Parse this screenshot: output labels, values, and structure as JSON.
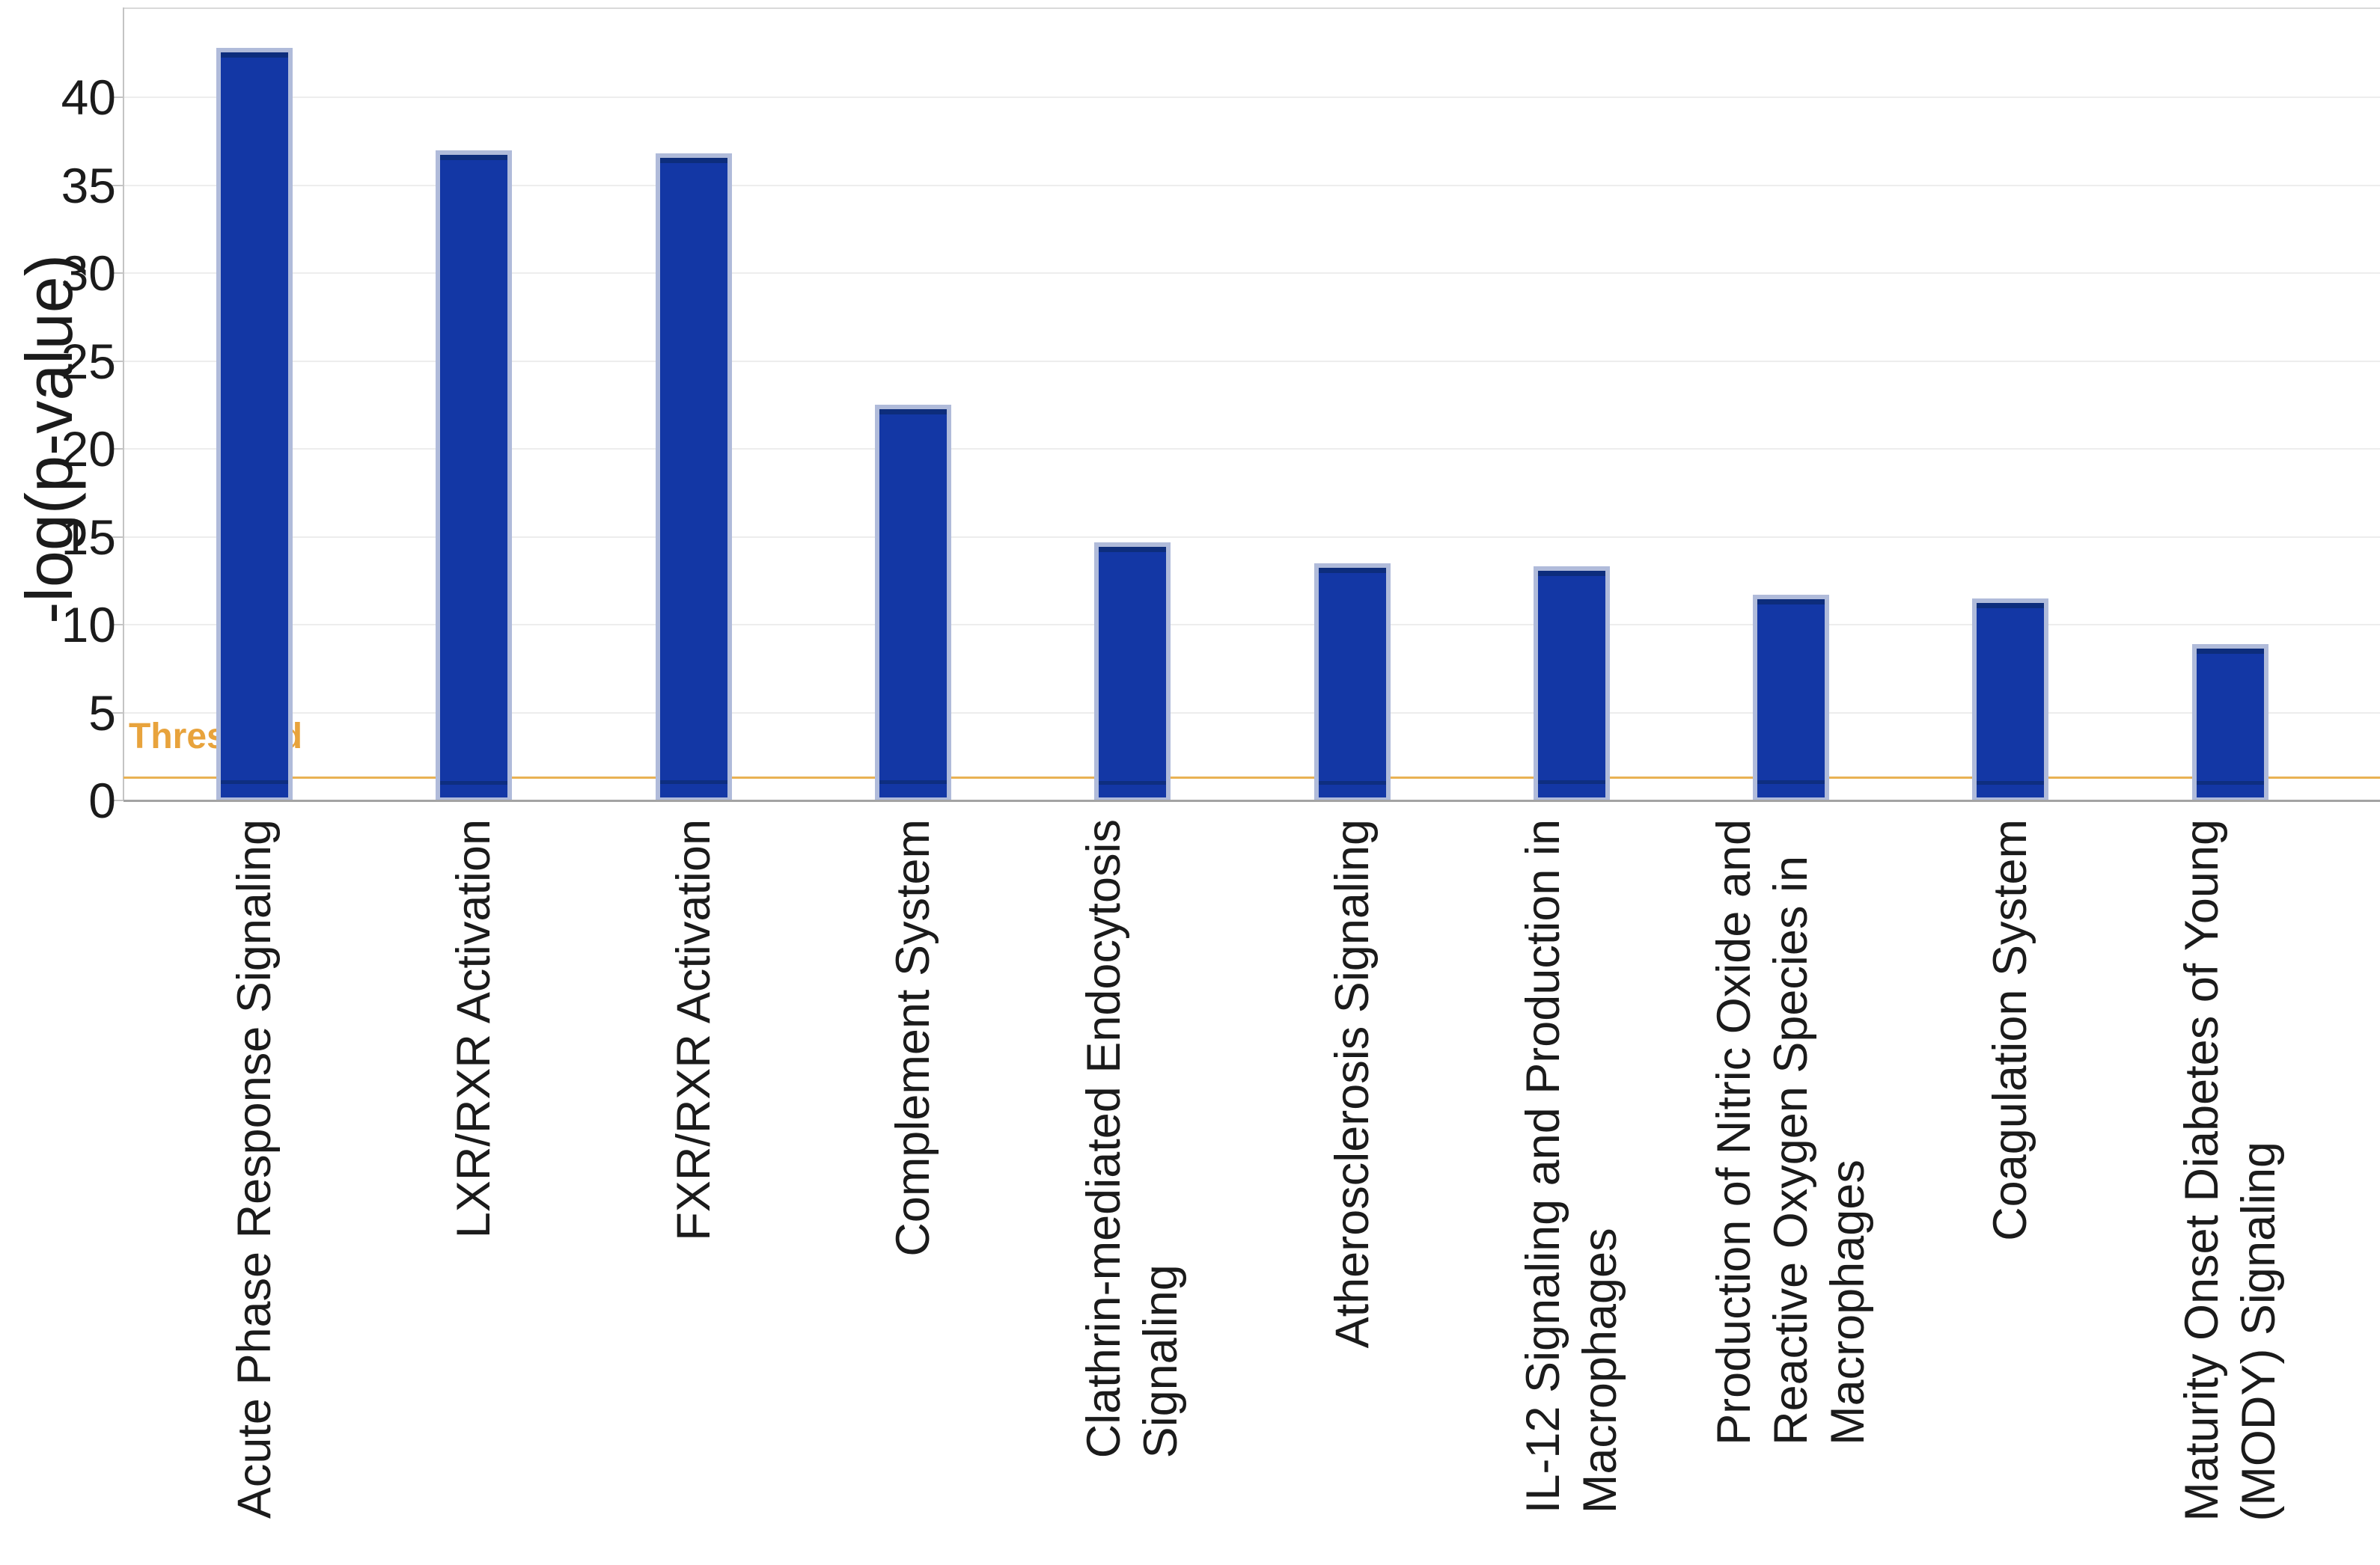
{
  "chart_data": {
    "type": "bar",
    "title": "",
    "xlabel": "",
    "ylabel": "-log(p-value)",
    "ylim": [
      0,
      45
    ],
    "yticks": [
      0,
      5,
      10,
      15,
      20,
      25,
      30,
      35,
      40
    ],
    "grid": true,
    "legend_position": "none",
    "threshold": {
      "label": "Threshold",
      "value": 1.3
    },
    "categories": [
      "Acute Phase Response Signaling",
      "LXR/RXR Activation",
      "FXR/RXR Activation",
      "Complement System",
      "Clathrin-mediated Endocytosis Signaling",
      "Atherosclerosis Signaling",
      "IL-12 Signaling and Production in Macrophages",
      "Production of Nitric Oxide and Reactive Oxygen Species in Macrophages",
      "Coagulation System",
      "Maturity Onset Diabetes of Young (MODY) Signaling"
    ],
    "category_lines": [
      [
        "Acute Phase Response Signaling"
      ],
      [
        "LXR/RXR Activation"
      ],
      [
        "FXR/RXR Activation"
      ],
      [
        "Complement System"
      ],
      [
        "Clathrin-mediated Endocytosis",
        "Signaling"
      ],
      [
        "Atherosclerosis Signaling"
      ],
      [
        "IL-12 Signaling and Production in",
        "Macrophages"
      ],
      [
        "Production of Nitric Oxide and",
        "Reactive Oxygen Species in",
        "Macrophages"
      ],
      [
        "Coagulation System"
      ],
      [
        "Maturity Onset Diabetes of Young",
        "(MODY) Signaling"
      ]
    ],
    "values": [
      42.8,
      37.0,
      36.8,
      22.5,
      14.7,
      13.5,
      13.3,
      11.7,
      11.5,
      8.9
    ],
    "colors": {
      "bar_fill": "#1337a5",
      "bar_border": "#b0bbda",
      "bar_top_edge": "#0d2d7c",
      "bar_threshold_stripe": "#0e2e80",
      "threshold_line": "#e9b254",
      "threshold_text": "#e8a33c",
      "gridline": "#ededed",
      "axis_line": "#c4c4c4",
      "text": "#1b1b1b"
    }
  }
}
